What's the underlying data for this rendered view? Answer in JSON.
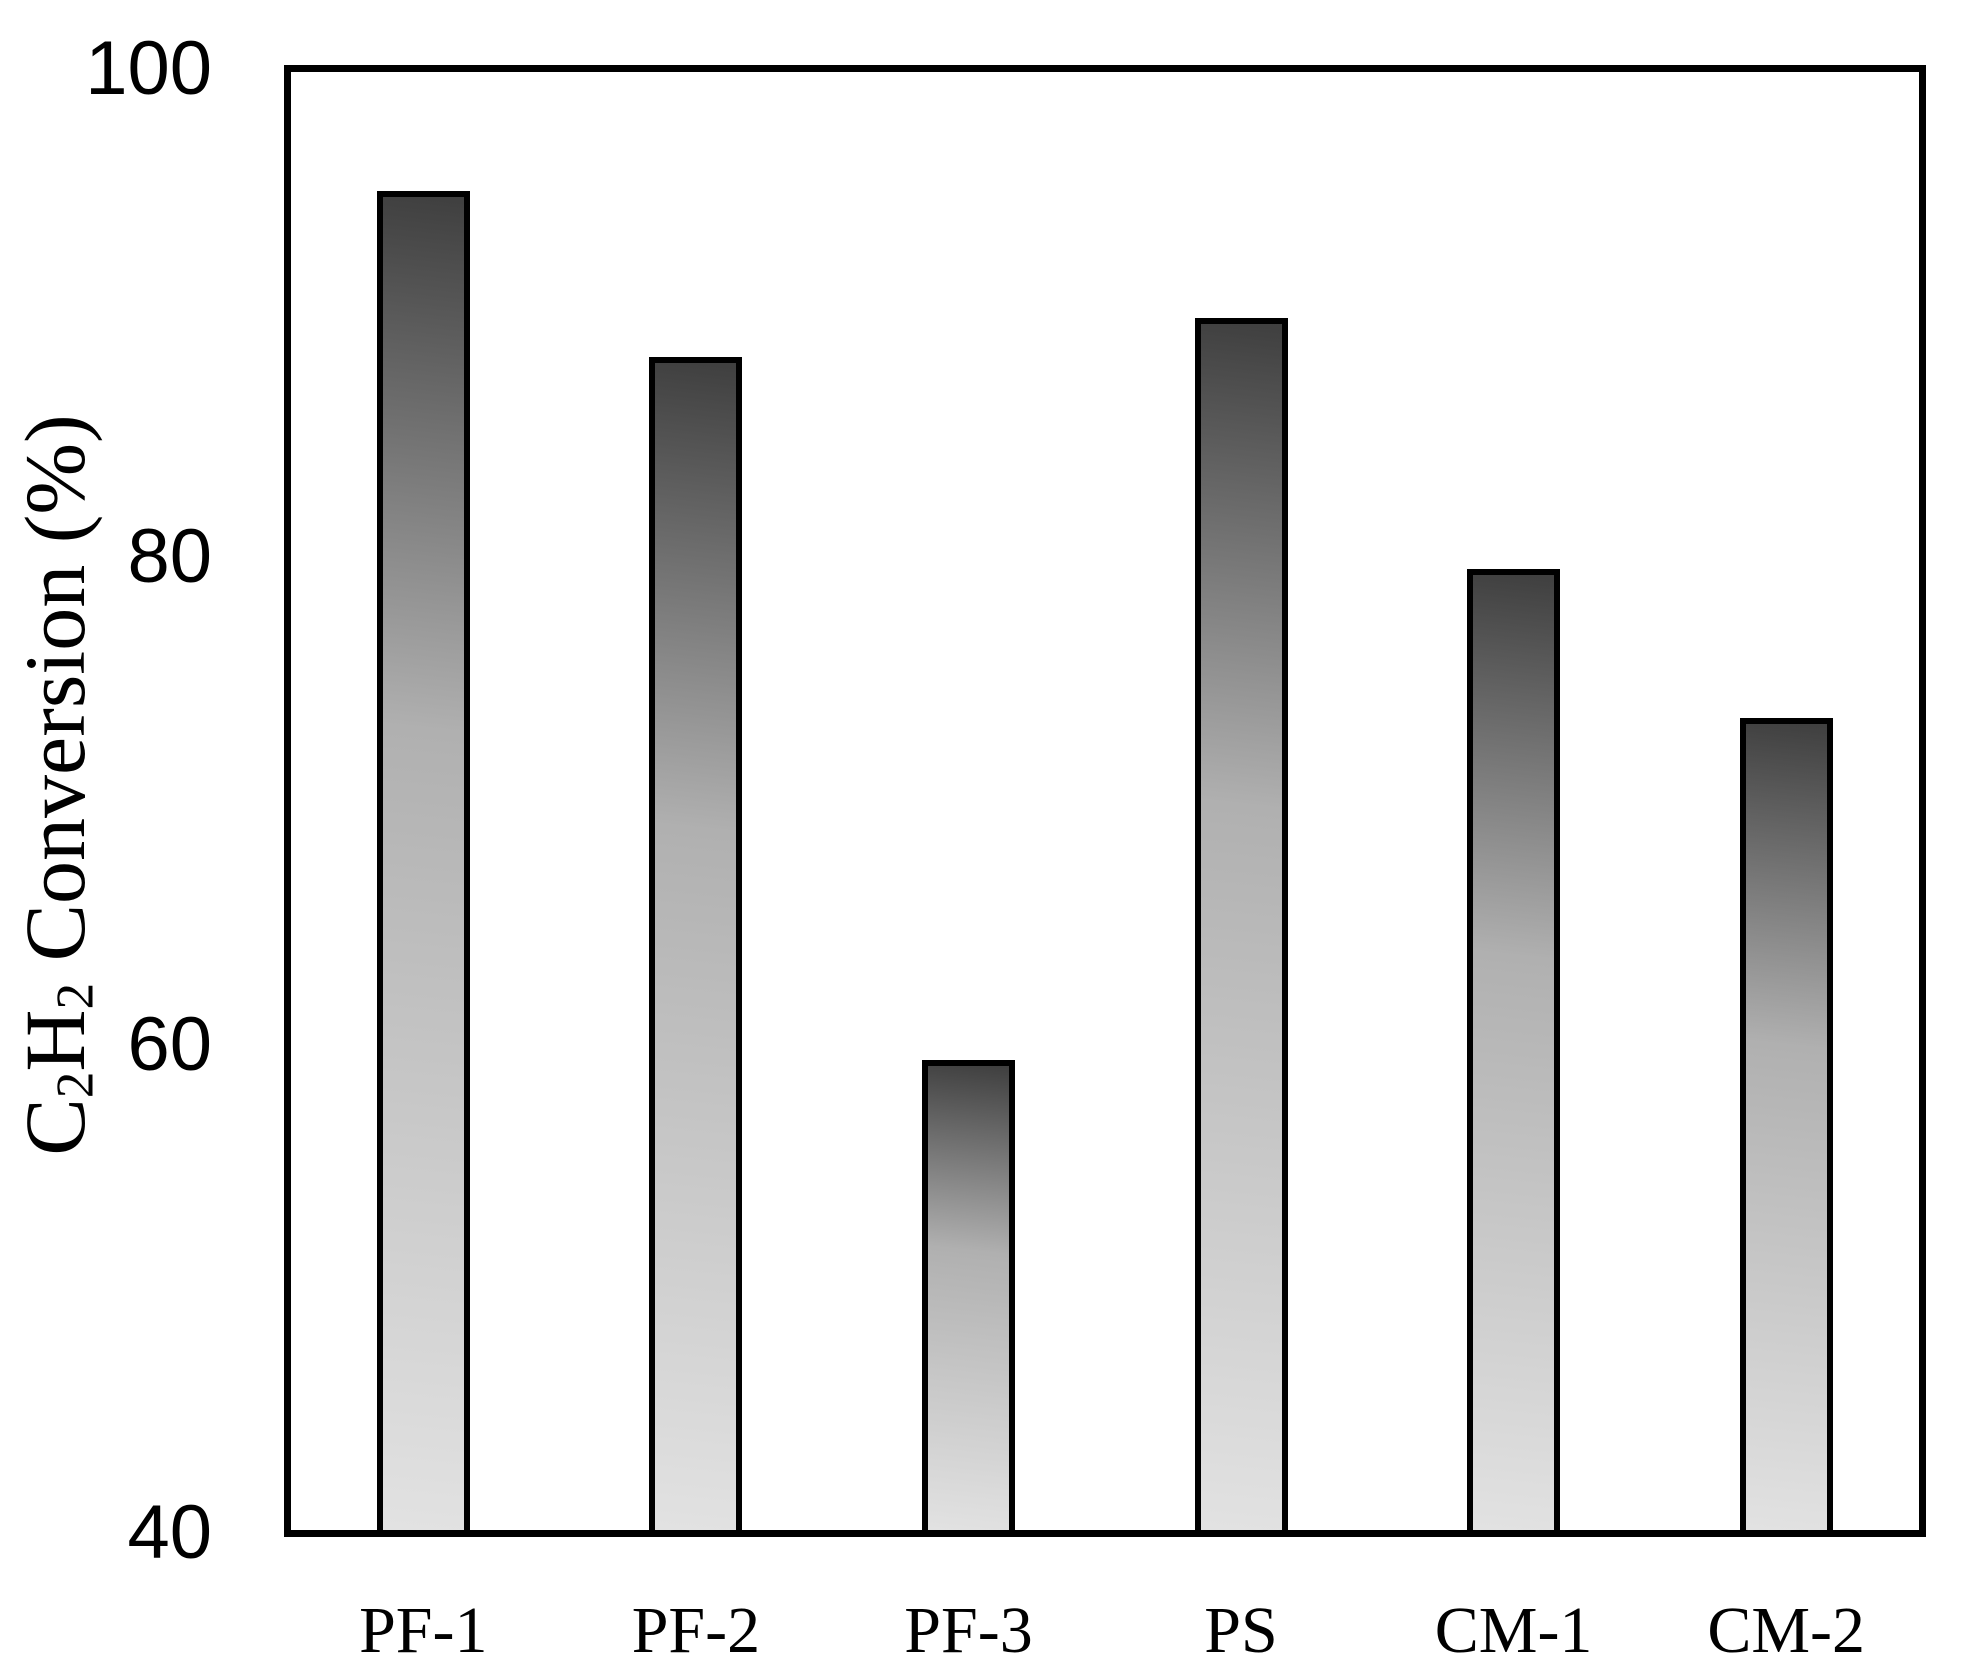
{
  "chart_data": {
    "type": "bar",
    "title": "",
    "ylabel_text": "C2H2 Conversion (%)",
    "ylabel_parts": [
      {
        "t": "C",
        "sub": false
      },
      {
        "t": "2",
        "sub": true
      },
      {
        "t": "H",
        "sub": false
      },
      {
        "t": "2",
        "sub": true
      },
      {
        "t": " Conversion (%)",
        "sub": false
      }
    ],
    "categories": [
      "PF-1",
      "PF-2",
      "PF-3",
      "PS",
      "CM-1",
      "CM-2"
    ],
    "values": [
      95.0,
      88.2,
      59.4,
      89.8,
      79.5,
      73.4
    ],
    "ylim": [
      40,
      100
    ],
    "yticks": [
      100,
      80,
      60,
      40
    ],
    "grid": false,
    "legend": "none",
    "colors": {
      "bar_gradient_top": "#3f3f3f",
      "bar_gradient_mid": "#b0b0b0",
      "bar_gradient_bottom": "#e2e2e2",
      "bar_border": "#000000",
      "frame": "#000000",
      "text": "#000000",
      "background": "#ffffff"
    }
  }
}
